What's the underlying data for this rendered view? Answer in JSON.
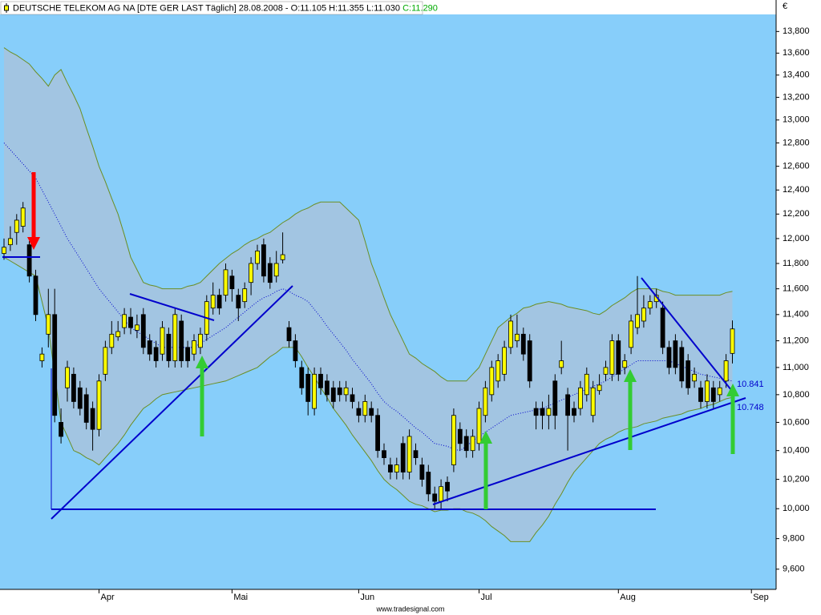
{
  "chart_data": {
    "type": "candlestick",
    "title": "DEUTSCHE TELEKOM AG NA [DTE GER LAST Täglich] 28.08.2008 - O:11.105 H:11.355 L:11.030",
    "title_close": "C:11.290",
    "currency": "€",
    "source": "www.tradesignal.com",
    "annotations": [
      "10.841",
      "10.748"
    ],
    "log_scale": true,
    "grid": false,
    "up_color": "#ffff00",
    "down_color": "#000000",
    "background": "#87cefa",
    "ylim": [
      9470,
      13960
    ],
    "yticks": [
      {
        "value": 9600,
        "label": "9,600"
      },
      {
        "value": 9800,
        "label": "9,800"
      },
      {
        "value": 10000,
        "label": "10,000"
      },
      {
        "value": 10200,
        "label": "10,200"
      },
      {
        "value": 10400,
        "label": "10,400"
      },
      {
        "value": 10600,
        "label": "10,600"
      },
      {
        "value": 10800,
        "label": "10,800"
      },
      {
        "value": 11000,
        "label": "11,000"
      },
      {
        "value": 11200,
        "label": "11,200"
      },
      {
        "value": 11400,
        "label": "11,400"
      },
      {
        "value": 11600,
        "label": "11,600"
      },
      {
        "value": 11800,
        "label": "11,800"
      },
      {
        "value": 12000,
        "label": "12,000"
      },
      {
        "value": 12200,
        "label": "12,200"
      },
      {
        "value": 12400,
        "label": "12,400"
      },
      {
        "value": 12600,
        "label": "12,600"
      },
      {
        "value": 12800,
        "label": "12,800"
      },
      {
        "value": 13000,
        "label": "13,000"
      },
      {
        "value": 13200,
        "label": "13,200"
      },
      {
        "value": 13400,
        "label": "13,400"
      },
      {
        "value": 13600,
        "label": "13,600"
      },
      {
        "value": 13800,
        "label": "13,800"
      }
    ],
    "categories": [
      null,
      null,
      null,
      null,
      null,
      null,
      null,
      null,
      null,
      null,
      null,
      null,
      null,
      null,
      null,
      "Apr",
      null,
      null,
      null,
      null,
      null,
      null,
      null,
      null,
      null,
      null,
      null,
      null,
      null,
      null,
      null,
      null,
      null,
      null,
      null,
      null,
      "Mai",
      null,
      null,
      null,
      null,
      null,
      null,
      null,
      null,
      null,
      null,
      null,
      null,
      null,
      null,
      null,
      null,
      null,
      null,
      null,
      "Jun",
      null,
      null,
      null,
      null,
      null,
      null,
      null,
      null,
      null,
      null,
      null,
      null,
      null,
      null,
      null,
      null,
      null,
      null,
      "Jul",
      null,
      null,
      null,
      null,
      null,
      null,
      null,
      null,
      null,
      null,
      null,
      null,
      null,
      null,
      null,
      null,
      null,
      null,
      null,
      null,
      null,
      "Aug",
      null,
      null,
      null,
      null,
      null,
      null,
      null,
      null,
      null,
      null,
      null,
      null,
      null,
      null,
      null,
      null,
      null,
      null,
      null,
      null,
      "Sep"
    ],
    "open": [
      11880,
      11950,
      12050,
      12100,
      11950,
      11700,
      11050,
      11250,
      11400,
      10600,
      10850,
      10950,
      10850,
      10800,
      10700,
      10550,
      10950,
      11150,
      11230,
      11300,
      11380,
      11280,
      11400,
      11200,
      11150,
      11100,
      11250,
      11050,
      11350,
      11150,
      11100,
      11150,
      11250,
      11450,
      11550,
      11550,
      11700,
      11550,
      11500,
      11650,
      11800,
      11950,
      11800,
      11700,
      11830,
      11300,
      11200,
      11000,
      10950,
      10700,
      10950,
      10900,
      10850,
      10850,
      10800,
      10800,
      10700,
      10650,
      10700,
      10650,
      10400,
      10300,
      10250,
      10450,
      10250,
      10400,
      10300,
      10250,
      10100,
      10050,
      10180,
      10300,
      10550,
      10500,
      10400,
      10450,
      10650,
      10800,
      10900,
      10950,
      11150,
      11200,
      11250,
      11200,
      10700,
      10700,
      10650,
      10900,
      11000,
      10800,
      10700,
      10700,
      10800,
      10650,
      10830,
      10950,
      10950,
      11200,
      11000,
      11150,
      11300,
      11350,
      11450,
      11500,
      11450,
      11150,
      11200,
      11150,
      11050,
      10900,
      10850,
      10750,
      10850,
      10800,
      10900,
      11105,
      null,
      null,
      null
    ],
    "high": [
      12000,
      12100,
      12200,
      12300,
      11980,
      11750,
      11150,
      11600,
      11600,
      10700,
      11050,
      11000,
      10900,
      10850,
      10750,
      10950,
      11200,
      11350,
      11350,
      11450,
      11450,
      11400,
      11450,
      11250,
      11200,
      11350,
      11300,
      11450,
      11400,
      11200,
      11250,
      11300,
      11550,
      11650,
      11600,
      11800,
      11750,
      11600,
      11650,
      11850,
      11950,
      12000,
      11850,
      11900,
      12050,
      11350,
      11250,
      11050,
      11000,
      11000,
      11000,
      10950,
      10900,
      10900,
      10900,
      10850,
      10750,
      10800,
      10750,
      10700,
      10450,
      10350,
      10350,
      10500,
      10550,
      10450,
      10350,
      10300,
      10150,
      10200,
      10220,
      10700,
      10600,
      10550,
      10550,
      10750,
      10900,
      11050,
      11100,
      11200,
      11400,
      11400,
      11300,
      11250,
      10750,
      10750,
      10800,
      10950,
      11200,
      10850,
      10750,
      10900,
      11000,
      10900,
      10950,
      11050,
      11250,
      11250,
      11100,
      11400,
      11700,
      11550,
      11550,
      11600,
      11500,
      11200,
      11250,
      11200,
      11100,
      11000,
      10900,
      10950,
      10900,
      10900,
      11100,
      11355,
      null,
      null,
      null
    ],
    "low": [
      11830,
      11900,
      11950,
      12050,
      11650,
      11350,
      11000,
      11150,
      10600,
      10450,
      10750,
      10700,
      10650,
      10550,
      10400,
      10500,
      10900,
      11100,
      11200,
      11250,
      11250,
      11220,
      11100,
      11050,
      11000,
      11050,
      11000,
      11000,
      11000,
      11000,
      11050,
      11100,
      11200,
      11400,
      11400,
      11500,
      11500,
      11350,
      11450,
      11550,
      11750,
      11650,
      11600,
      11650,
      11800,
      11150,
      11000,
      10800,
      10650,
      10650,
      10800,
      10750,
      10700,
      10750,
      10750,
      10700,
      10600,
      10600,
      10600,
      10350,
      10300,
      10200,
      10200,
      10200,
      10200,
      10300,
      10150,
      10050,
      10000,
      10000,
      10050,
      10250,
      10400,
      10350,
      10350,
      10400,
      10600,
      10750,
      10850,
      10900,
      11100,
      11150,
      11050,
      10850,
      10550,
      10550,
      10550,
      10550,
      10950,
      10400,
      10600,
      10650,
      10750,
      10600,
      10800,
      10900,
      10900,
      10900,
      10950,
      11100,
      11250,
      11300,
      11400,
      11450,
      11100,
      10950,
      10950,
      10850,
      10800,
      10850,
      10700,
      10700,
      10700,
      10750,
      10850,
      11030,
      null,
      null,
      null
    ],
    "close": [
      11930,
      12000,
      12150,
      12250,
      11700,
      11400,
      11100,
      11400,
      10650,
      10500,
      11000,
      10750,
      10700,
      10600,
      10550,
      10900,
      11150,
      11250,
      11270,
      11400,
      11300,
      11320,
      11150,
      11100,
      11050,
      11300,
      11050,
      11400,
      11050,
      11050,
      11200,
      11250,
      11500,
      11550,
      11450,
      11750,
      11600,
      11450,
      11600,
      11800,
      11900,
      11700,
      11650,
      11800,
      11870,
      11200,
      11050,
      10850,
      10750,
      10950,
      10850,
      10800,
      10750,
      10800,
      10850,
      10750,
      10650,
      10750,
      10650,
      10400,
      10350,
      10250,
      10300,
      10250,
      10500,
      10350,
      10200,
      10100,
      10050,
      10150,
      10120,
      10650,
      10450,
      10400,
      10500,
      10700,
      10850,
      11000,
      11050,
      11150,
      11350,
      11250,
      11100,
      10900,
      10650,
      10650,
      10700,
      10650,
      11050,
      10650,
      10650,
      10850,
      10950,
      10850,
      10870,
      11000,
      11200,
      10950,
      11050,
      11350,
      11400,
      11450,
      11500,
      11550,
      11150,
      11000,
      11000,
      10900,
      10850,
      10950,
      10750,
      10900,
      10750,
      10850,
      11050,
      11290,
      null,
      null,
      null
    ],
    "bands": {
      "color": "#6b8e23",
      "fill": "#a9c3dc",
      "middle_color": "#0000cc",
      "upper": [
        13650,
        13610,
        13580,
        13540,
        13500,
        13430,
        13370,
        13300,
        13400,
        13450,
        13330,
        13220,
        13100,
        12930,
        12770,
        12600,
        12470,
        12330,
        12200,
        12030,
        11850,
        11750,
        11650,
        11630,
        11620,
        11600,
        11600,
        11600,
        11600,
        11620,
        11630,
        11650,
        11700,
        11750,
        11800,
        11840,
        11880,
        11910,
        11950,
        11980,
        12000,
        12030,
        12050,
        12090,
        12130,
        12160,
        12200,
        12230,
        12250,
        12280,
        12300,
        12300,
        12300,
        12300,
        12250,
        12200,
        12150,
        11980,
        11800,
        11670,
        11530,
        11400,
        11300,
        11200,
        11100,
        11070,
        11030,
        11000,
        10970,
        10930,
        10900,
        10900,
        10900,
        10900,
        10950,
        11000,
        11100,
        11200,
        11300,
        11340,
        11380,
        11410,
        11450,
        11460,
        11480,
        11490,
        11500,
        11490,
        11480,
        11460,
        11450,
        11440,
        11430,
        11410,
        11400,
        11430,
        11470,
        11500,
        11530,
        11570,
        11600,
        11600,
        11600,
        11600,
        11580,
        11570,
        11550,
        11550,
        11550,
        11550,
        11550,
        11550,
        11550,
        11550,
        11570,
        11580,
        null,
        null,
        null
      ],
      "middle": [
        12800,
        12740,
        12680,
        12620,
        12560,
        12500,
        12400,
        12300,
        12200,
        12100,
        12000,
        11920,
        11840,
        11760,
        11680,
        11600,
        11540,
        11480,
        11420,
        11360,
        11300,
        11270,
        11240,
        11210,
        11180,
        11150,
        11150,
        11150,
        11150,
        11150,
        11150,
        11180,
        11210,
        11240,
        11270,
        11300,
        11340,
        11380,
        11420,
        11460,
        11500,
        11530,
        11550,
        11580,
        11600,
        11580,
        11550,
        11530,
        11500,
        11440,
        11380,
        11310,
        11250,
        11190,
        11130,
        11060,
        11000,
        10940,
        10880,
        10810,
        10750,
        10710,
        10680,
        10640,
        10600,
        10560,
        10530,
        10490,
        10450,
        10440,
        10430,
        10410,
        10400,
        10430,
        10470,
        10500,
        10530,
        10560,
        10590,
        10620,
        10650,
        10660,
        10670,
        10680,
        10690,
        10700,
        10720,
        10740,
        10760,
        10780,
        10800,
        10820,
        10840,
        10860,
        10880,
        10900,
        10930,
        10960,
        10990,
        11020,
        11050,
        11050,
        11050,
        11050,
        11050,
        11050,
        11030,
        11010,
        10990,
        10970,
        10950,
        10940,
        10930,
        10920,
        10910,
        10900,
        null,
        null,
        null
      ],
      "lower": [
        11850,
        11820,
        11790,
        11760,
        11730,
        11700,
        11500,
        11300,
        10950,
        10600,
        10500,
        10400,
        10380,
        10350,
        10330,
        10300,
        10350,
        10400,
        10450,
        10510,
        10580,
        10640,
        10700,
        10730,
        10770,
        10800,
        10810,
        10820,
        10830,
        10840,
        10850,
        10860,
        10870,
        10880,
        10890,
        10900,
        10920,
        10940,
        10960,
        10980,
        11000,
        11040,
        11080,
        11110,
        11150,
        11150,
        11150,
        11080,
        11000,
        10930,
        10850,
        10780,
        10700,
        10640,
        10580,
        10510,
        10450,
        10390,
        10330,
        10260,
        10200,
        10160,
        10130,
        10090,
        10050,
        10030,
        10020,
        10000,
        9980,
        9990,
        9990,
        10000,
        10000,
        9980,
        9970,
        9950,
        9920,
        9880,
        9850,
        9820,
        9780,
        9780,
        9780,
        9780,
        9840,
        9890,
        9950,
        10030,
        10100,
        10180,
        10250,
        10300,
        10350,
        10400,
        10450,
        10480,
        10500,
        10530,
        10550,
        10560,
        10570,
        10590,
        10600,
        10610,
        10630,
        10640,
        10650,
        10660,
        10680,
        10690,
        10700,
        10720,
        10730,
        10750,
        10770,
        10780,
        null,
        null,
        null
      ]
    }
  }
}
